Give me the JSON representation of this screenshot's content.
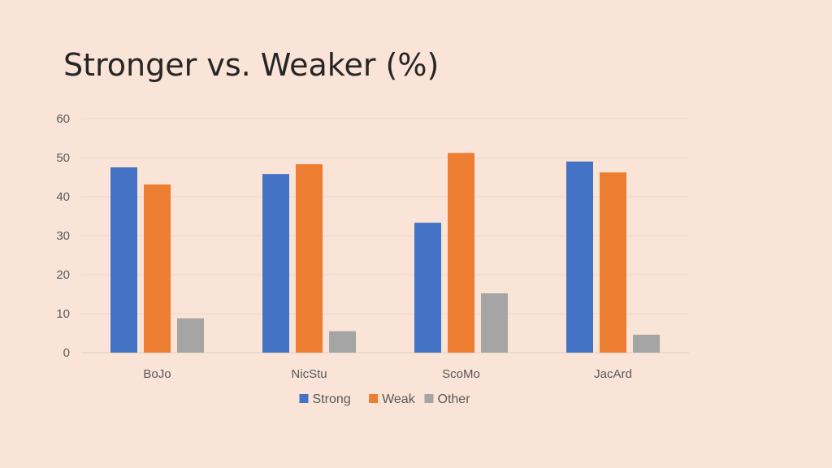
{
  "slide": {
    "title": "Stronger vs. Weaker (%)"
  },
  "chart_data": {
    "type": "bar",
    "title": "Stronger vs. Weaker (%)",
    "categories": [
      "BoJo",
      "NicStu",
      "ScoMo",
      "JacArd"
    ],
    "series": [
      {
        "name": "Strong",
        "color": "#4472C4",
        "values": [
          47.5,
          45.8,
          33.3,
          49
        ]
      },
      {
        "name": "Weak",
        "color": "#ED7D31",
        "values": [
          43.1,
          48.3,
          51.2,
          46.2
        ]
      },
      {
        "name": "Other",
        "color": "#A5A5A5",
        "values": [
          8.8,
          5.5,
          15.2,
          4.6
        ]
      }
    ],
    "yticks": [
      0,
      10,
      20,
      30,
      40,
      50,
      60
    ],
    "ylim": [
      0,
      60
    ],
    "xlabel": "",
    "ylabel": "",
    "grid": true,
    "legend_position": "bottom"
  }
}
